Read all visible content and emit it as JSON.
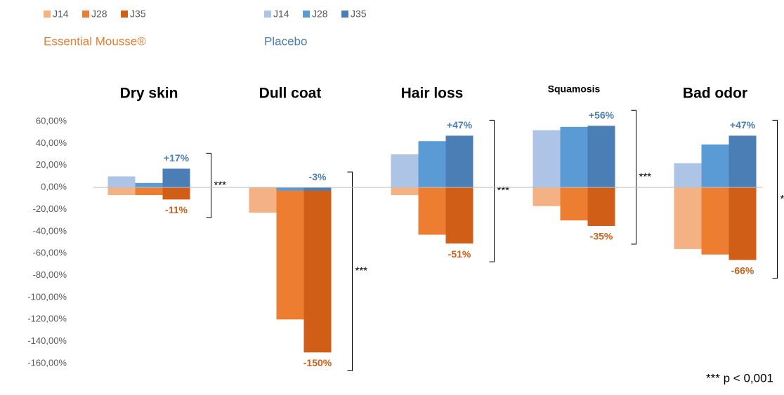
{
  "chart_data": {
    "type": "bar",
    "categories": [
      "Dry skin",
      "Dull coat",
      "Hair loss",
      "Squamosis",
      "Bad odor"
    ],
    "groups": [
      "Essential Mousse®",
      "Placebo"
    ],
    "series": [
      {
        "name": "J14",
        "group": "Essential Mousse®",
        "color": "#f4b183",
        "values": [
          -7,
          -23,
          -7,
          -17,
          -56
        ]
      },
      {
        "name": "J28",
        "group": "Essential Mousse®",
        "color": "#ed7d31",
        "values": [
          -7,
          -120,
          -43,
          -30,
          -61
        ]
      },
      {
        "name": "J35",
        "group": "Essential Mousse®",
        "color": "#d05e17",
        "values": [
          -11,
          -150,
          -51,
          -35,
          -66
        ],
        "value_labels": [
          "-11%",
          "-150%",
          "-51%",
          "-35%",
          "-66%"
        ]
      },
      {
        "name": "J14",
        "group": "Placebo",
        "color": "#adc4e6",
        "values": [
          10,
          0,
          30,
          52,
          22
        ]
      },
      {
        "name": "J28",
        "group": "Placebo",
        "color": "#5b9bd5",
        "values": [
          4,
          -3,
          42,
          55,
          39
        ]
      },
      {
        "name": "J35",
        "group": "Placebo",
        "color": "#4a7eb4",
        "values": [
          17,
          -3,
          47,
          56,
          47
        ],
        "value_labels": [
          "+17%",
          "-3%",
          "+47%",
          "+56%",
          "+47%"
        ]
      }
    ],
    "ylim": [
      -160,
      60
    ],
    "yticks": [
      {
        "value": 60,
        "label": "60,00%"
      },
      {
        "value": 40,
        "label": "40,00%"
      },
      {
        "value": 20,
        "label": "20,00%"
      },
      {
        "value": 0,
        "label": "0,00%"
      },
      {
        "value": -20,
        "label": "-20,00%"
      },
      {
        "value": -40,
        "label": "-40,00%"
      },
      {
        "value": -60,
        "label": "-60,00%"
      },
      {
        "value": -80,
        "label": "-80,00%"
      },
      {
        "value": -100,
        "label": "-100,00%"
      },
      {
        "value": -120,
        "label": "-120,00%"
      },
      {
        "value": -140,
        "label": "-140,00%"
      },
      {
        "value": -160,
        "label": "-160,00%"
      }
    ],
    "grid": false,
    "significance": [
      "***",
      "***",
      "***",
      "***",
      "***"
    ],
    "footnote": "*** p < 0,001"
  }
}
